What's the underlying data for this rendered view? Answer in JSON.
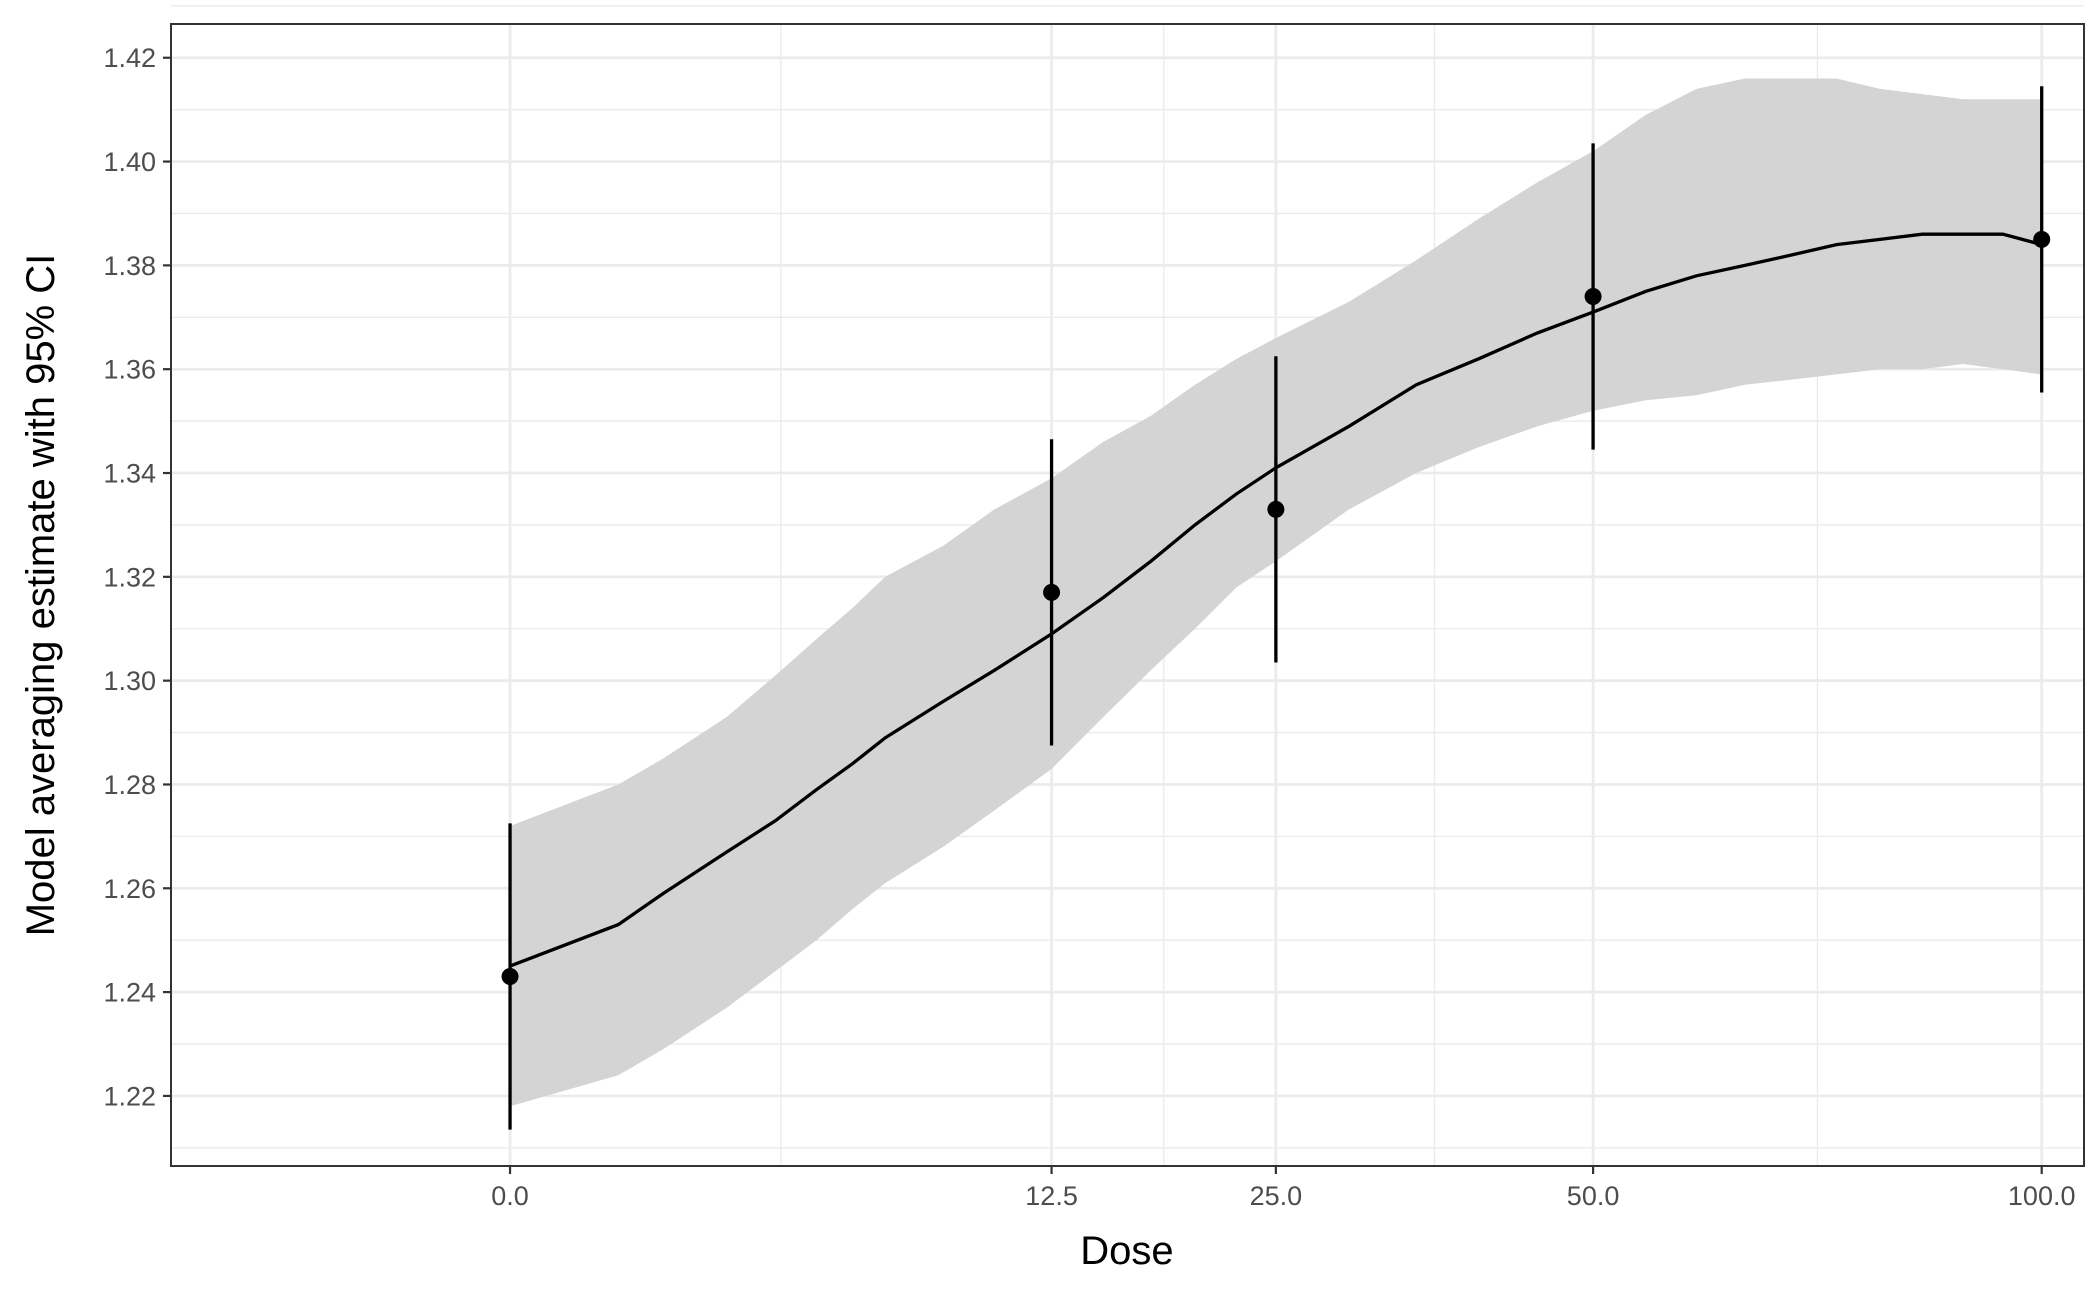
{
  "chart_data": {
    "type": "line",
    "title": "",
    "xlabel": "Dose",
    "ylabel": "Model averaging estimate with 95% CI",
    "x_tick_labels": [
      "0.0",
      "12.5",
      "25.0",
      "50.0",
      "100.0"
    ],
    "x_tick_values": [
      0,
      12.5,
      25,
      50,
      100
    ],
    "x_scale": "sqrt",
    "y_tick_labels": [
      "1.22",
      "1.24",
      "1.26",
      "1.28",
      "1.30",
      "1.32",
      "1.34",
      "1.36",
      "1.38",
      "1.40",
      "1.42"
    ],
    "y_tick_values": [
      1.22,
      1.24,
      1.26,
      1.28,
      1.3,
      1.32,
      1.34,
      1.36,
      1.38,
      1.4,
      1.42
    ],
    "xlim": [
      -4.9,
      105.6
    ],
    "ylim": [
      1.2065,
      1.4265
    ],
    "grid": true,
    "colors": {
      "band": "#d4d4d4",
      "line": "#000000",
      "points": "#000000",
      "grid": "#ebebeb"
    },
    "curve": {
      "x": [
        0,
        0.5,
        1,
        2,
        3,
        4,
        5,
        6,
        8,
        10,
        12.5,
        15,
        17.5,
        20,
        22.5,
        25,
        30,
        35,
        40,
        45,
        50,
        55,
        60,
        65,
        70,
        75,
        80,
        85,
        90,
        95,
        100
      ],
      "y": [
        1.245,
        1.253,
        1.259,
        1.267,
        1.273,
        1.279,
        1.284,
        1.289,
        1.296,
        1.302,
        1.309,
        1.316,
        1.323,
        1.33,
        1.336,
        1.341,
        1.349,
        1.357,
        1.362,
        1.367,
        1.371,
        1.375,
        1.378,
        1.38,
        1.382,
        1.384,
        1.385,
        1.386,
        1.386,
        1.386,
        1.384
      ],
      "lower": [
        1.218,
        1.224,
        1.229,
        1.237,
        1.244,
        1.25,
        1.256,
        1.261,
        1.268,
        1.275,
        1.283,
        1.293,
        1.302,
        1.31,
        1.318,
        1.323,
        1.333,
        1.34,
        1.345,
        1.349,
        1.352,
        1.354,
        1.355,
        1.357,
        1.358,
        1.359,
        1.36,
        1.36,
        1.361,
        1.36,
        1.359
      ],
      "upper": [
        1.272,
        1.28,
        1.285,
        1.293,
        1.301,
        1.308,
        1.314,
        1.32,
        1.326,
        1.333,
        1.339,
        1.346,
        1.351,
        1.357,
        1.362,
        1.366,
        1.373,
        1.381,
        1.389,
        1.396,
        1.402,
        1.409,
        1.414,
        1.416,
        1.416,
        1.416,
        1.414,
        1.413,
        1.412,
        1.412,
        1.412
      ]
    },
    "points": {
      "x": [
        0,
        12.5,
        25,
        50,
        100
      ],
      "y": [
        1.243,
        1.317,
        1.333,
        1.374,
        1.385
      ],
      "lower": [
        1.2135,
        1.2875,
        1.3035,
        1.3445,
        1.3555
      ],
      "upper": [
        1.2725,
        1.3465,
        1.3625,
        1.4035,
        1.4145
      ]
    }
  }
}
